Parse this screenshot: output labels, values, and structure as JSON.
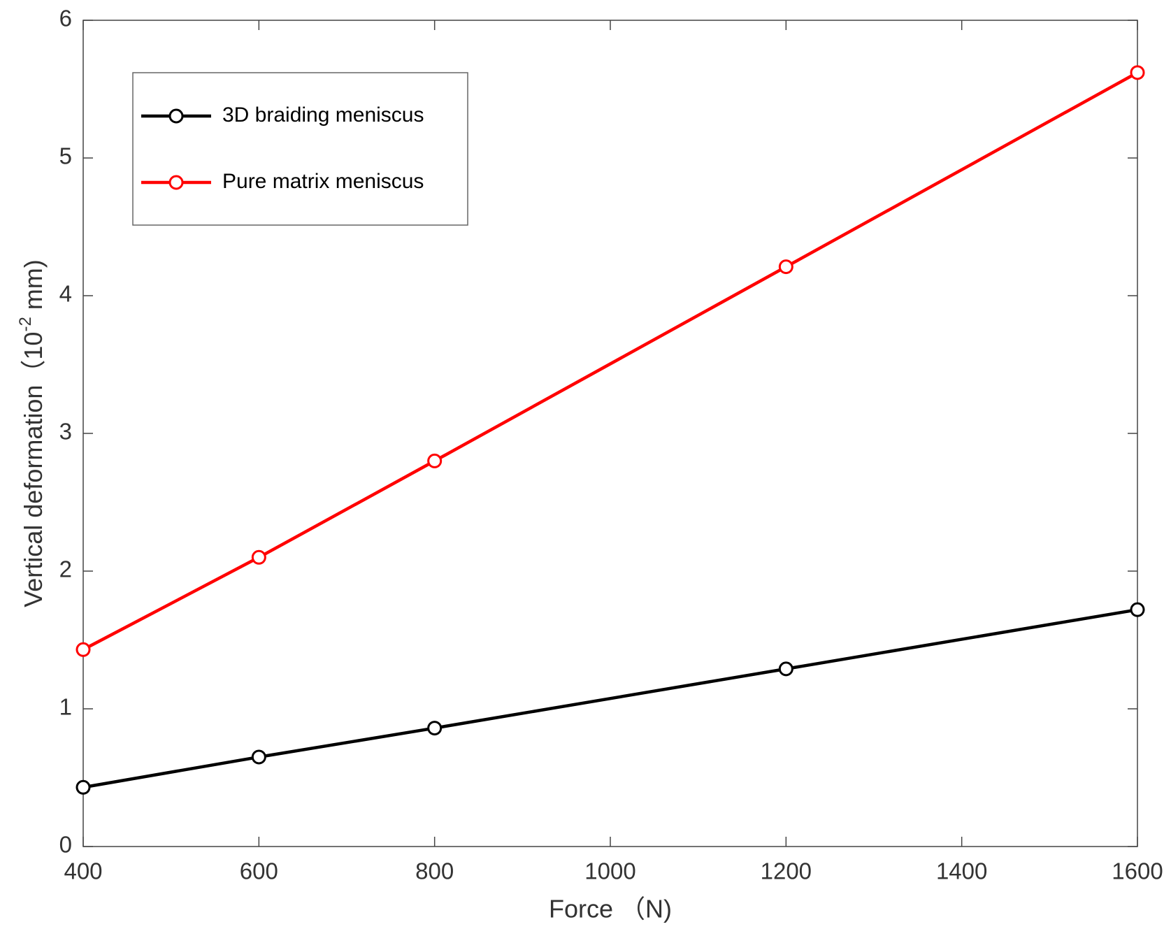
{
  "chart_data": {
    "type": "line",
    "x_label": "Force （N)",
    "y_label": [
      "Vertical deformation（10",
      "-2",
      " mm)"
    ],
    "x": [
      400,
      600,
      800,
      1200,
      1600
    ],
    "series": [
      {
        "name": "3D braiding meniscus",
        "color": "#000000",
        "values": [
          0.43,
          0.65,
          0.86,
          1.29,
          1.72
        ]
      },
      {
        "name": "Pure matrix meniscus",
        "color": "#ff0000",
        "values": [
          1.43,
          2.1,
          2.8,
          4.21,
          5.62
        ]
      }
    ],
    "xlim": [
      400,
      1600
    ],
    "xticks": [
      400,
      600,
      800,
      1000,
      1200,
      1400,
      1600
    ],
    "ylim": [
      0,
      6
    ],
    "yticks": [
      0,
      1,
      2,
      3,
      4,
      5,
      6
    ],
    "grid": false,
    "legend": "upper left"
  }
}
